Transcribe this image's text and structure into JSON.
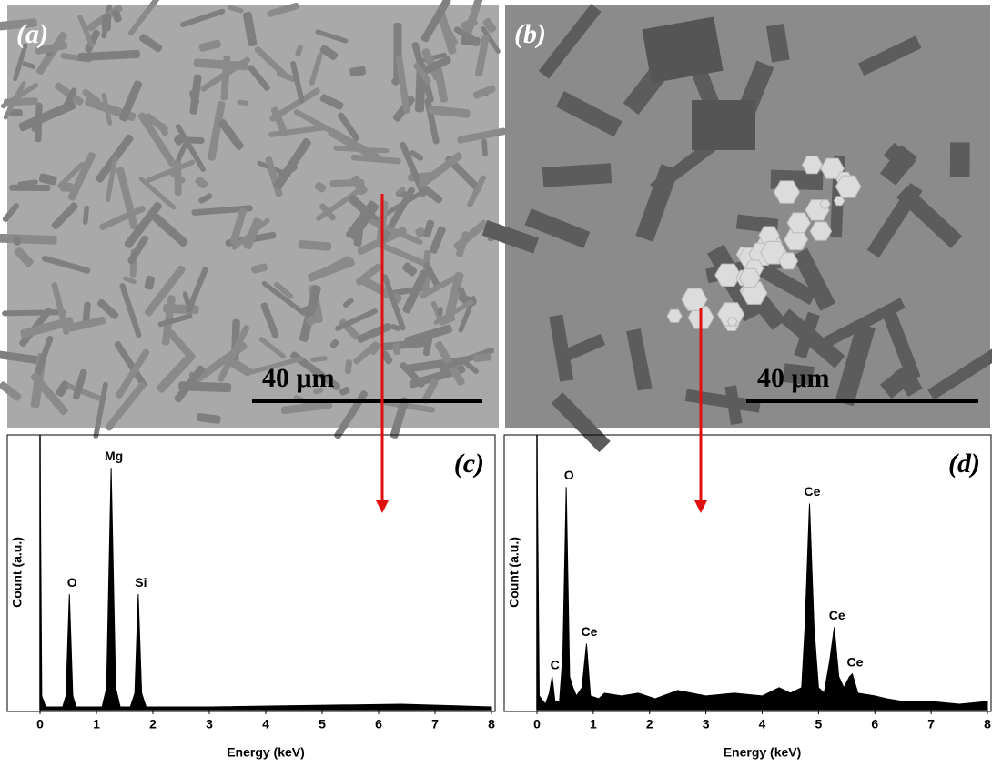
{
  "panels": {
    "a": {
      "label": "(a)",
      "scale_bar": "40 μm"
    },
    "b": {
      "label": "(b)",
      "scale_bar": "40 μm"
    }
  },
  "chart_data": [
    {
      "type": "area",
      "label": "(c)",
      "xlabel": "Energy (keV)",
      "ylabel": "Count (a.u.)",
      "color": "#000000",
      "xlim": [
        0,
        8
      ],
      "xticks": [
        0,
        1,
        2,
        3,
        4,
        5,
        6,
        7,
        8
      ],
      "ylim": [
        0,
        100
      ],
      "x": [
        0,
        0.03,
        0.1,
        0.4,
        0.46,
        0.52,
        0.58,
        0.64,
        1.1,
        1.18,
        1.26,
        1.34,
        1.42,
        1.6,
        1.68,
        1.74,
        1.8,
        1.88,
        3,
        6.4,
        8
      ],
      "values": [
        97,
        5,
        1,
        1,
        5,
        42,
        5,
        1,
        1,
        8,
        88,
        8,
        1,
        1,
        6,
        42,
        6,
        1,
        1,
        2,
        1
      ],
      "annotations": [
        {
          "text": "O",
          "x": 0.52,
          "y": 42
        },
        {
          "text": "Mg",
          "x": 1.26,
          "y": 88
        },
        {
          "text": "Si",
          "x": 1.74,
          "y": 42
        }
      ]
    },
    {
      "type": "area",
      "label": "(d)",
      "xlabel": "Energy (keV)",
      "ylabel": "Count (a.u.)",
      "color": "#000000",
      "xlim": [
        0,
        8
      ],
      "xticks": [
        0,
        1,
        2,
        3,
        4,
        5,
        6,
        7,
        8
      ],
      "ylim": [
        0,
        100
      ],
      "x": [
        0,
        0.04,
        0.15,
        0.22,
        0.27,
        0.32,
        0.4,
        0.46,
        0.52,
        0.58,
        0.64,
        0.7,
        0.8,
        0.88,
        0.95,
        1.1,
        1.2,
        1.5,
        1.8,
        2.1,
        2.5,
        3,
        3.5,
        4,
        4.3,
        4.5,
        4.7,
        4.76,
        4.84,
        4.92,
        5.0,
        5.1,
        5.2,
        5.28,
        5.36,
        5.45,
        5.55,
        5.6,
        5.7,
        6,
        6.2,
        6.5,
        7,
        7.5,
        8
      ],
      "values": [
        99,
        5,
        2,
        6,
        12,
        3,
        3,
        20,
        81,
        12,
        8,
        5,
        8,
        24,
        5,
        4,
        6,
        5,
        6,
        4,
        7,
        5,
        6,
        5,
        8,
        6,
        8,
        30,
        75,
        30,
        8,
        6,
        18,
        30,
        12,
        8,
        12,
        13,
        6,
        5,
        4,
        3,
        3,
        2,
        3
      ],
      "annotations": [
        {
          "text": "C",
          "x": 0.27,
          "y": 12
        },
        {
          "text": "O",
          "x": 0.52,
          "y": 81
        },
        {
          "text": "Ce",
          "x": 0.88,
          "y": 24
        },
        {
          "text": "Ce",
          "x": 4.84,
          "y": 75
        },
        {
          "text": "Ce",
          "x": 5.28,
          "y": 30
        },
        {
          "text": "Ce",
          "x": 5.6,
          "y": 13
        }
      ]
    }
  ]
}
